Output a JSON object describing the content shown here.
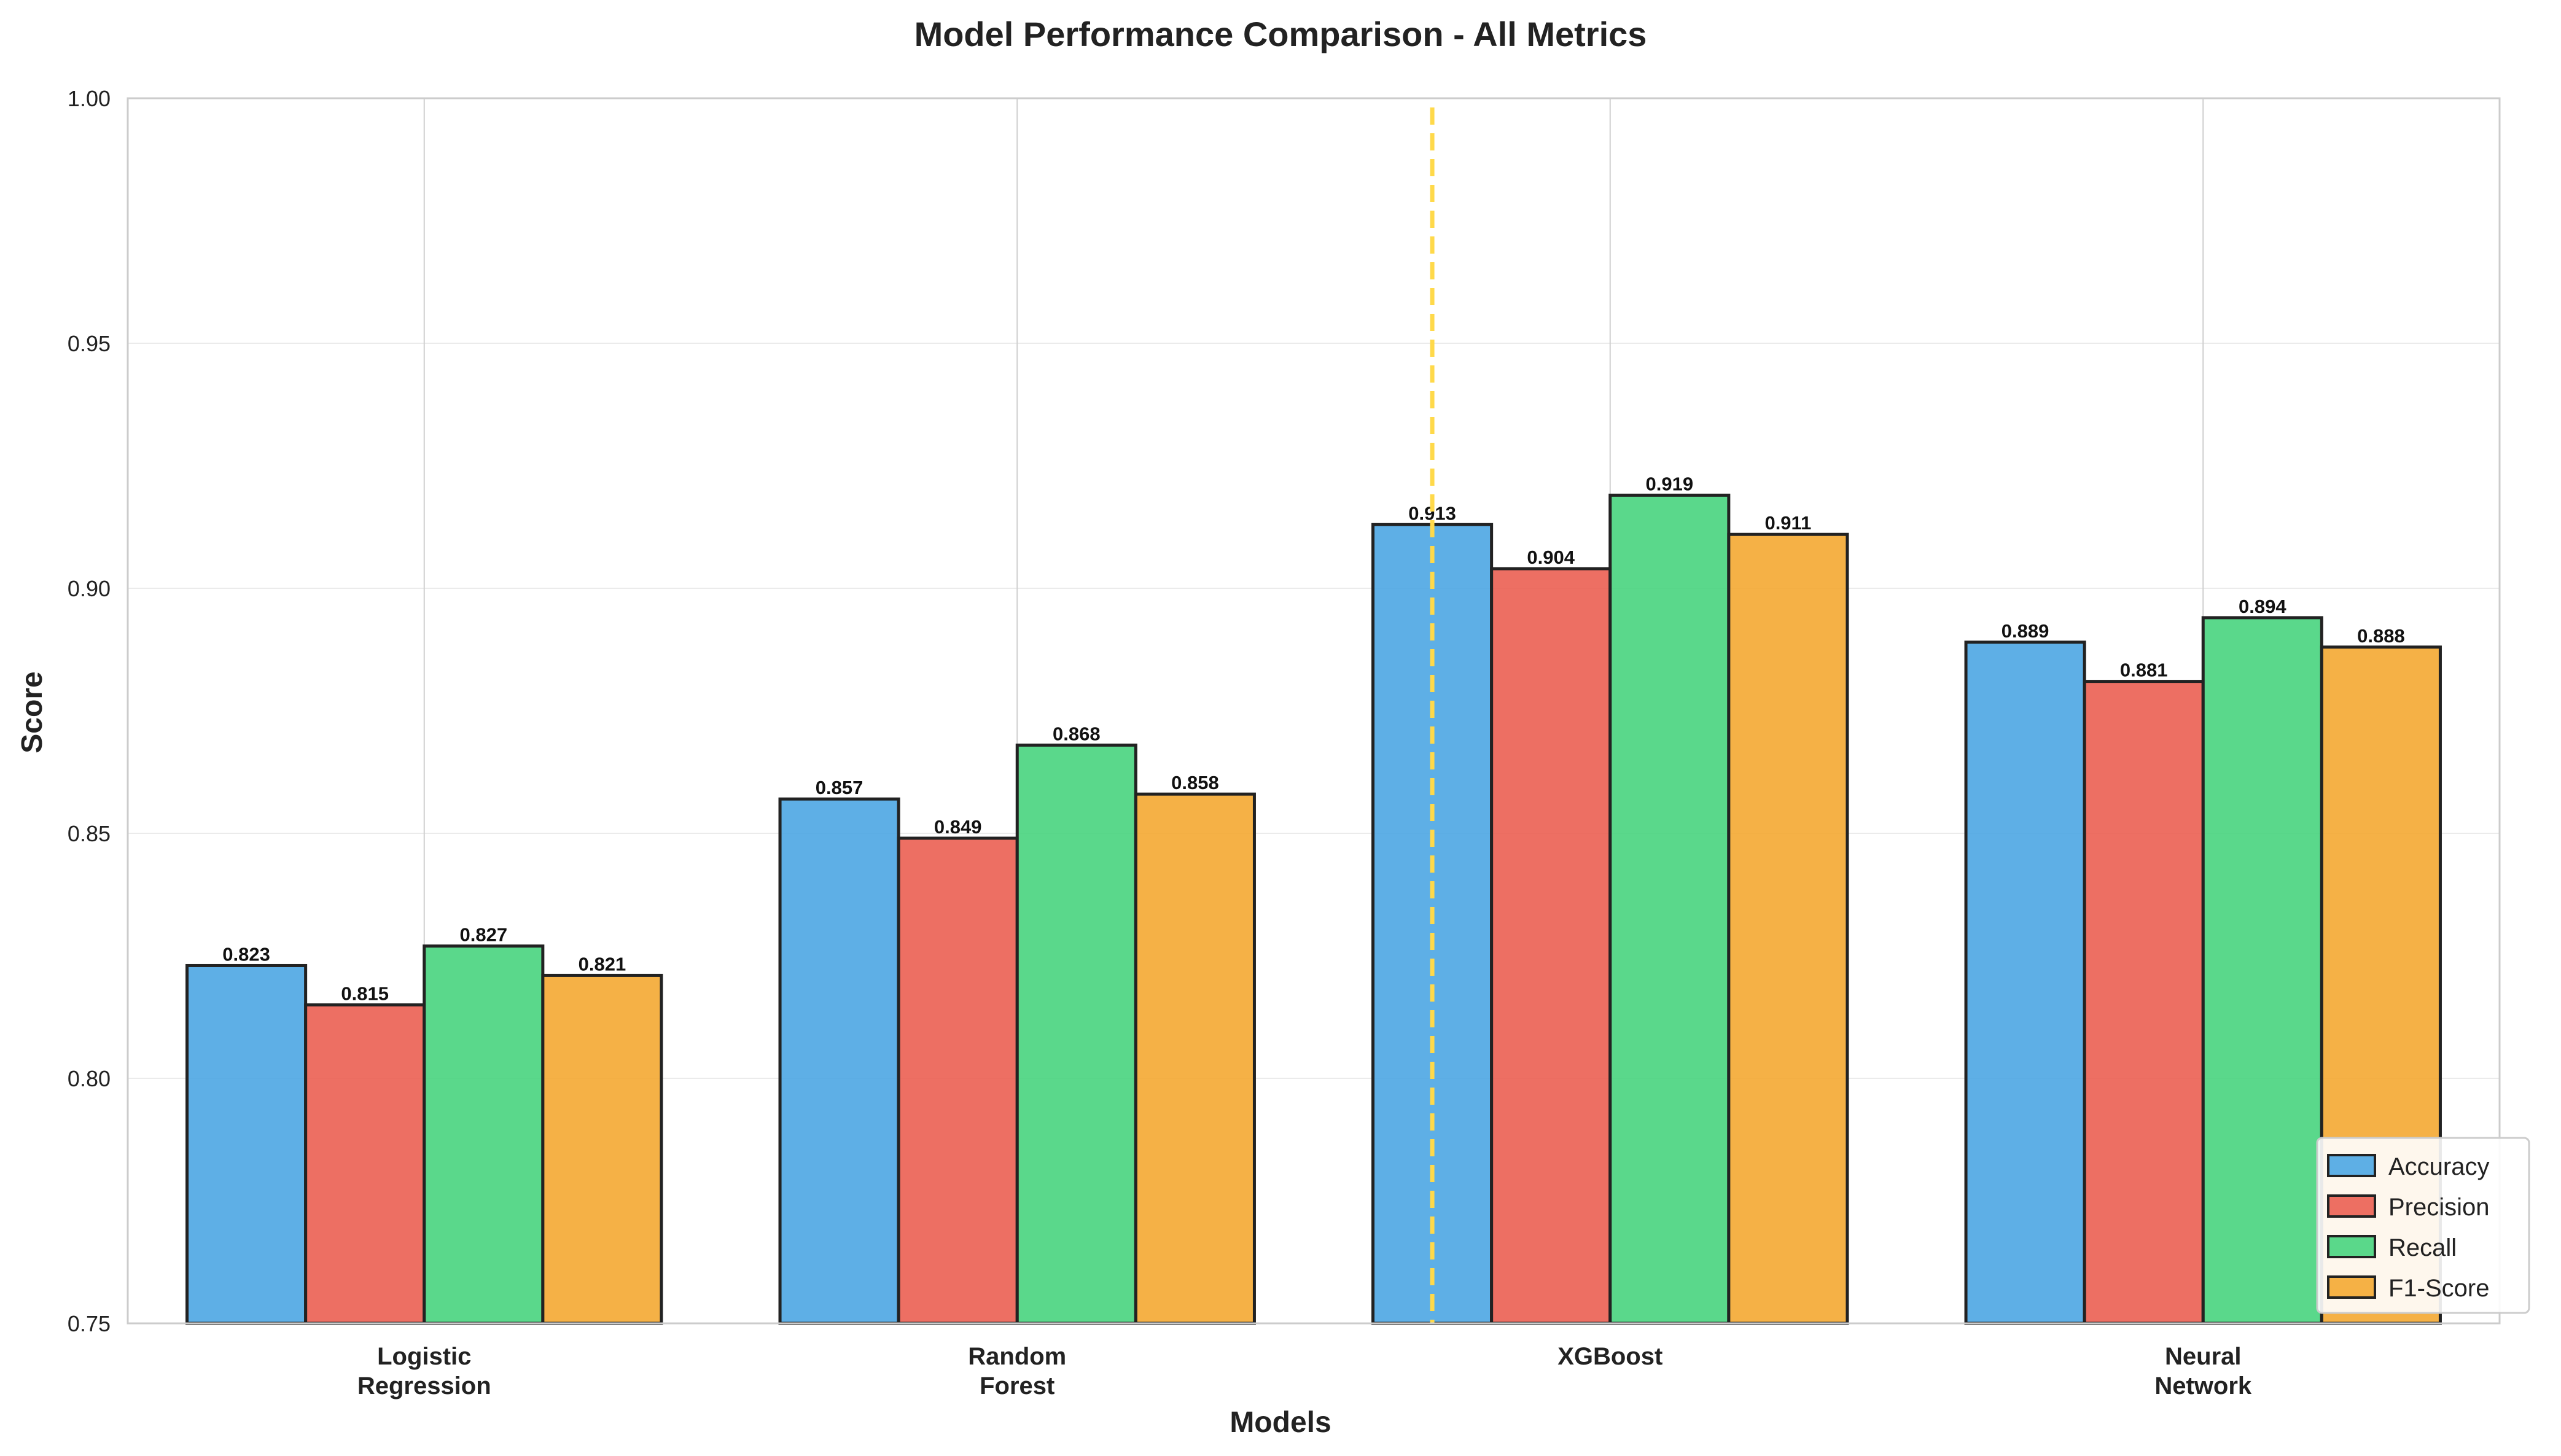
{
  "chart_data": {
    "type": "bar",
    "title": "Model Performance Comparison - All Metrics",
    "xlabel": "Models",
    "ylabel": "Score",
    "ylim": [
      0.75,
      1.0
    ],
    "yticks": [
      "0.75",
      "0.80",
      "0.85",
      "0.90",
      "0.95",
      "1.00"
    ],
    "categories": [
      [
        "Logistic",
        "Regression"
      ],
      [
        "Random",
        "Forest"
      ],
      [
        "XGBoost"
      ],
      [
        "Neural",
        "Network"
      ]
    ],
    "series": [
      {
        "name": "Accuracy",
        "color": "#4da6e3",
        "values": [
          0.823,
          0.857,
          0.913,
          0.889
        ]
      },
      {
        "name": "Precision",
        "color": "#eb5f52",
        "values": [
          0.815,
          0.849,
          0.904,
          0.881
        ]
      },
      {
        "name": "Recall",
        "color": "#48d47e",
        "values": [
          0.827,
          0.868,
          0.919,
          0.894
        ]
      },
      {
        "name": "F1-Score",
        "color": "#f4a832",
        "values": [
          0.821,
          0.858,
          0.911,
          0.888
        ]
      }
    ],
    "highlight_category": 2,
    "highlight_line_color": "#ffd94a",
    "grid": true,
    "legend_position": "bottom-right"
  }
}
